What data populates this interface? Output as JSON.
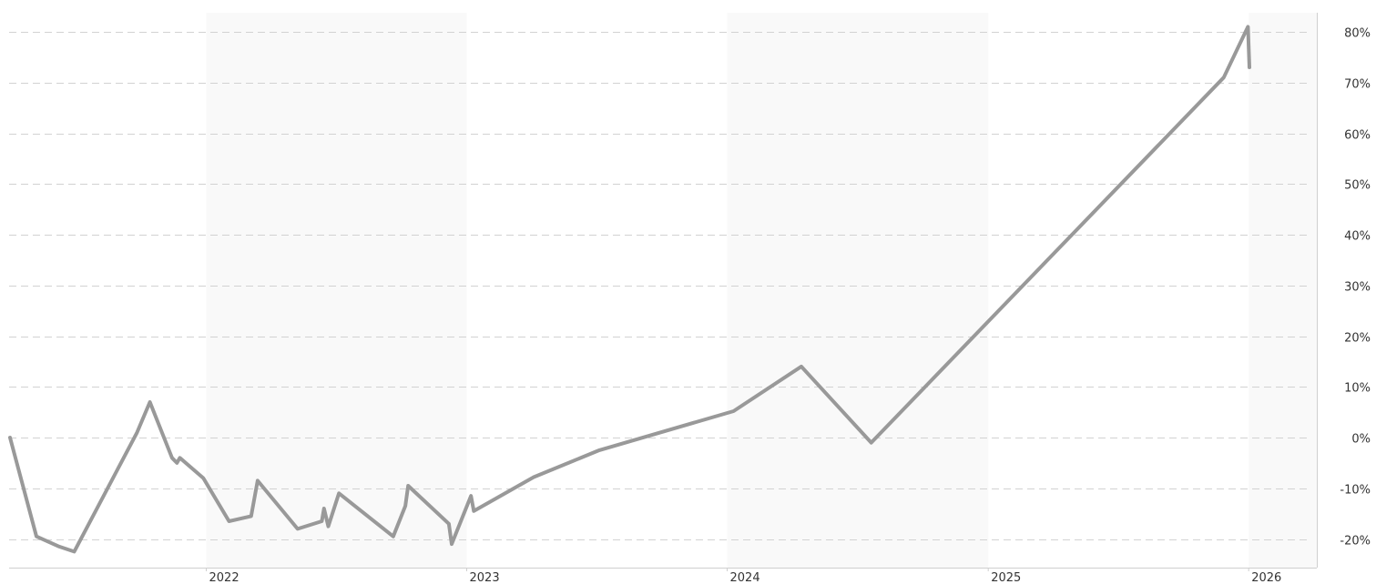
{
  "chart_data": {
    "type": "line",
    "title": "",
    "xlabel": "",
    "ylabel": "",
    "grid": true,
    "legend": "none",
    "xlim": [
      "2021-04-01",
      "2026-04-30"
    ],
    "ylim": [
      -25,
      82
    ],
    "y_ticks": [
      80,
      70,
      60,
      50,
      40,
      30,
      20,
      10,
      0,
      -10,
      -20
    ],
    "y_tick_labels": [
      "80%",
      "70%",
      "60%",
      "50%",
      "40%",
      "30%",
      "20%",
      "10%",
      "0%",
      "-10%",
      "-20%"
    ],
    "x_ticks": [
      "2022-01-01",
      "2023-01-01",
      "2024-01-01",
      "2025-01-01",
      "2026-01-01"
    ],
    "x_tick_labels": [
      "2022",
      "2023",
      "2024",
      "2025",
      "2026"
    ],
    "shaded_year_bands": [
      [
        "2022-01-01",
        "2023-01-01"
      ],
      [
        "2024-01-01",
        "2025-01-01"
      ],
      [
        "2026-01-01",
        "2026-04-30"
      ]
    ],
    "colors": {
      "line": "#999999",
      "band": "#f9f9f9",
      "grid": "#d2d2d2",
      "text": "#333333"
    },
    "series": [
      {
        "points": [
          [
            "2021-04-01",
            0.0
          ],
          [
            "2021-05-08",
            -19.5
          ],
          [
            "2021-06-09",
            -21.5
          ],
          [
            "2021-06-30",
            -22.5
          ],
          [
            "2021-09-26",
            1.0
          ],
          [
            "2021-10-14",
            7.0
          ],
          [
            "2021-11-14",
            -4.0
          ],
          [
            "2021-11-21",
            -5.0
          ],
          [
            "2021-11-25",
            -4.0
          ],
          [
            "2021-12-28",
            -8.0
          ],
          [
            "2022-02-02",
            -16.5
          ],
          [
            "2022-03-05",
            -15.5
          ],
          [
            "2022-03-14",
            -8.5
          ],
          [
            "2022-05-09",
            -18.0
          ],
          [
            "2022-06-12",
            -16.5
          ],
          [
            "2022-06-15",
            -14.0
          ],
          [
            "2022-06-21",
            -17.5
          ],
          [
            "2022-07-06",
            -11.0
          ],
          [
            "2022-09-20",
            -19.5
          ],
          [
            "2022-10-07",
            -13.5
          ],
          [
            "2022-10-11",
            -9.5
          ],
          [
            "2022-12-07",
            -17.0
          ],
          [
            "2022-12-11",
            -21.0
          ],
          [
            "2023-01-07",
            -11.5
          ],
          [
            "2023-01-11",
            -14.5
          ],
          [
            "2023-04-05",
            -7.8
          ],
          [
            "2023-07-06",
            -2.5
          ],
          [
            "2024-01-10",
            5.2
          ],
          [
            "2024-04-14",
            14.0
          ],
          [
            "2024-07-21",
            -1.0
          ],
          [
            "2025-11-27",
            71.0
          ],
          [
            "2025-12-31",
            81.0
          ],
          [
            "2026-01-02",
            73.0
          ]
        ]
      }
    ]
  }
}
